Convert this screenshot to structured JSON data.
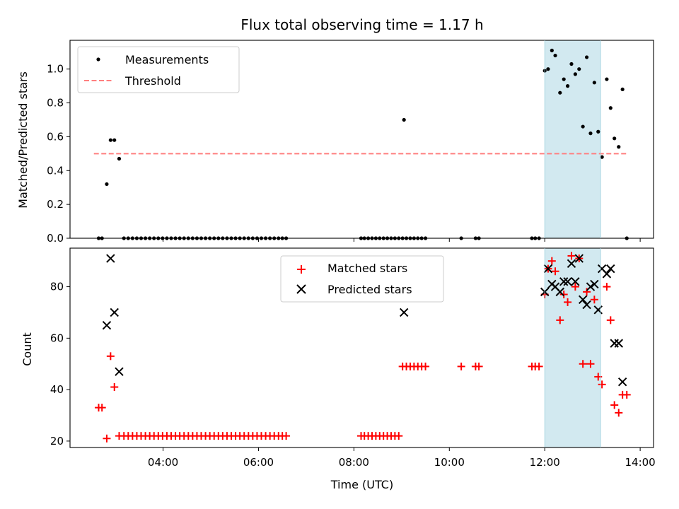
{
  "chart_data": [
    {
      "type": "scatter",
      "title": "Flux total observing time = 1.17 h",
      "xlabel": "",
      "ylabel": "Matched/Predicted stars",
      "xlim_hours": [
        2.05,
        14.28
      ],
      "ylim": [
        0,
        1.17
      ],
      "yticks": [
        0.0,
        0.2,
        0.4,
        0.6,
        0.8,
        1.0
      ],
      "ytick_labels": [
        "0.0",
        "0.2",
        "0.4",
        "0.6",
        "0.8",
        "1.0"
      ],
      "legend_position": "top-left",
      "shaded_span_hours": [
        12.0,
        13.17
      ],
      "shaded_color": "#d2e9f0",
      "series": [
        {
          "name": "Measurements",
          "kind": "points",
          "color": "#000000",
          "x": [
            2.65,
            2.72,
            2.82,
            2.9,
            2.98,
            3.08,
            3.18,
            3.27,
            3.36,
            3.45,
            3.54,
            3.63,
            3.72,
            3.81,
            3.9,
            3.99,
            4.08,
            4.17,
            4.26,
            4.35,
            4.44,
            4.53,
            4.62,
            4.71,
            4.8,
            4.89,
            4.98,
            5.07,
            5.16,
            5.25,
            5.34,
            5.43,
            5.52,
            5.61,
            5.7,
            5.79,
            5.88,
            5.97,
            6.06,
            6.15,
            6.24,
            6.33,
            6.42,
            6.5,
            6.58,
            8.15,
            8.22,
            8.3,
            8.38,
            8.46,
            8.54,
            8.62,
            8.7,
            8.78,
            8.86,
            8.94,
            9.02,
            9.05,
            9.1,
            9.18,
            9.26,
            9.34,
            9.42,
            9.5,
            10.25,
            10.55,
            10.62,
            11.73,
            11.8,
            11.88,
            12.0,
            12.07,
            12.15,
            12.22,
            12.32,
            12.4,
            12.48,
            12.56,
            12.64,
            12.72,
            12.8,
            12.88,
            12.96,
            13.04,
            13.12,
            13.2,
            13.3,
            13.38,
            13.46,
            13.55,
            13.63,
            13.72
          ],
          "y": [
            0,
            0,
            0.32,
            0.58,
            0.58,
            0.47,
            0,
            0,
            0,
            0,
            0,
            0,
            0,
            0,
            0,
            0,
            0,
            0,
            0,
            0,
            0,
            0,
            0,
            0,
            0,
            0,
            0,
            0,
            0,
            0,
            0,
            0,
            0,
            0,
            0,
            0,
            0,
            0,
            0,
            0,
            0,
            0,
            0,
            0,
            0,
            0,
            0,
            0,
            0,
            0,
            0,
            0,
            0,
            0,
            0,
            0,
            0,
            0.7,
            0,
            0,
            0,
            0,
            0,
            0,
            0,
            0,
            0,
            0,
            0,
            0,
            0.99,
            1.0,
            1.11,
            1.08,
            0.86,
            0.94,
            0.9,
            1.03,
            0.97,
            1.0,
            0.66,
            1.07,
            0.62,
            0.92,
            0.63,
            0.48,
            0.94,
            0.77,
            0.59,
            0.54,
            0.88,
            0
          ]
        },
        {
          "name": "Threshold",
          "kind": "dashed-line",
          "color": "#ff7f7f",
          "x": [
            2.55,
            13.72
          ],
          "y": [
            0.5,
            0.5
          ]
        }
      ]
    },
    {
      "type": "scatter",
      "title": "",
      "xlabel": "Time (UTC)",
      "ylabel": "Count",
      "xlim_hours": [
        2.05,
        14.28
      ],
      "ylim": [
        17.5,
        95
      ],
      "yticks": [
        20,
        40,
        60,
        80
      ],
      "ytick_labels": [
        "20",
        "40",
        "60",
        "80"
      ],
      "xticks_hours": [
        4,
        6,
        8,
        10,
        12,
        14
      ],
      "xtick_labels": [
        "04:00",
        "06:00",
        "08:00",
        "10:00",
        "12:00",
        "14:00"
      ],
      "legend_position": "top-center",
      "shaded_span_hours": [
        12.0,
        13.17
      ],
      "shaded_color": "#d2e9f0",
      "series": [
        {
          "name": "Matched stars",
          "kind": "plus",
          "color": "#ff0000",
          "x": [
            2.65,
            2.72,
            2.82,
            2.9,
            2.98,
            3.08,
            3.18,
            3.27,
            3.36,
            3.45,
            3.54,
            3.63,
            3.72,
            3.81,
            3.9,
            3.99,
            4.08,
            4.17,
            4.26,
            4.35,
            4.44,
            4.53,
            4.62,
            4.71,
            4.8,
            4.89,
            4.98,
            5.07,
            5.16,
            5.25,
            5.34,
            5.43,
            5.52,
            5.61,
            5.7,
            5.79,
            5.88,
            5.97,
            6.06,
            6.15,
            6.24,
            6.33,
            6.42,
            6.5,
            6.58,
            8.15,
            8.22,
            8.3,
            8.38,
            8.46,
            8.54,
            8.62,
            8.7,
            8.78,
            8.86,
            8.94,
            9.02,
            9.1,
            9.18,
            9.26,
            9.34,
            9.42,
            9.5,
            10.25,
            10.55,
            10.62,
            11.73,
            11.8,
            11.88,
            12.0,
            12.07,
            12.15,
            12.22,
            12.32,
            12.4,
            12.48,
            12.56,
            12.64,
            12.72,
            12.8,
            12.88,
            12.96,
            13.04,
            13.12,
            13.2,
            13.3,
            13.38,
            13.46,
            13.55,
            13.63,
            13.72
          ],
          "y": [
            33,
            33,
            21,
            53,
            41,
            22,
            22,
            22,
            22,
            22,
            22,
            22,
            22,
            22,
            22,
            22,
            22,
            22,
            22,
            22,
            22,
            22,
            22,
            22,
            22,
            22,
            22,
            22,
            22,
            22,
            22,
            22,
            22,
            22,
            22,
            22,
            22,
            22,
            22,
            22,
            22,
            22,
            22,
            22,
            22,
            22,
            22,
            22,
            22,
            22,
            22,
            22,
            22,
            22,
            22,
            22,
            49,
            49,
            49,
            49,
            49,
            49,
            49,
            49,
            49,
            49,
            49,
            49,
            49,
            77,
            87,
            90,
            86,
            67,
            77,
            74,
            92,
            80,
            91,
            50,
            78,
            50,
            75,
            45,
            42,
            80,
            67,
            34,
            31,
            38,
            38
          ]
        },
        {
          "name": "Predicted stars",
          "kind": "x",
          "color": "#000000",
          "x": [
            2.82,
            2.9,
            2.98,
            3.08,
            9.05,
            12.0,
            12.07,
            12.15,
            12.22,
            12.32,
            12.4,
            12.48,
            12.56,
            12.64,
            12.72,
            12.8,
            12.88,
            12.96,
            13.04,
            13.12,
            13.2,
            13.3,
            13.38,
            13.46,
            13.55,
            13.63
          ],
          "y": [
            65,
            91,
            70,
            47,
            70,
            78,
            87,
            81,
            80,
            78,
            82,
            82,
            89,
            82,
            91,
            75,
            73,
            80,
            81,
            71,
            87,
            85,
            87,
            58,
            58,
            43
          ]
        }
      ]
    }
  ]
}
